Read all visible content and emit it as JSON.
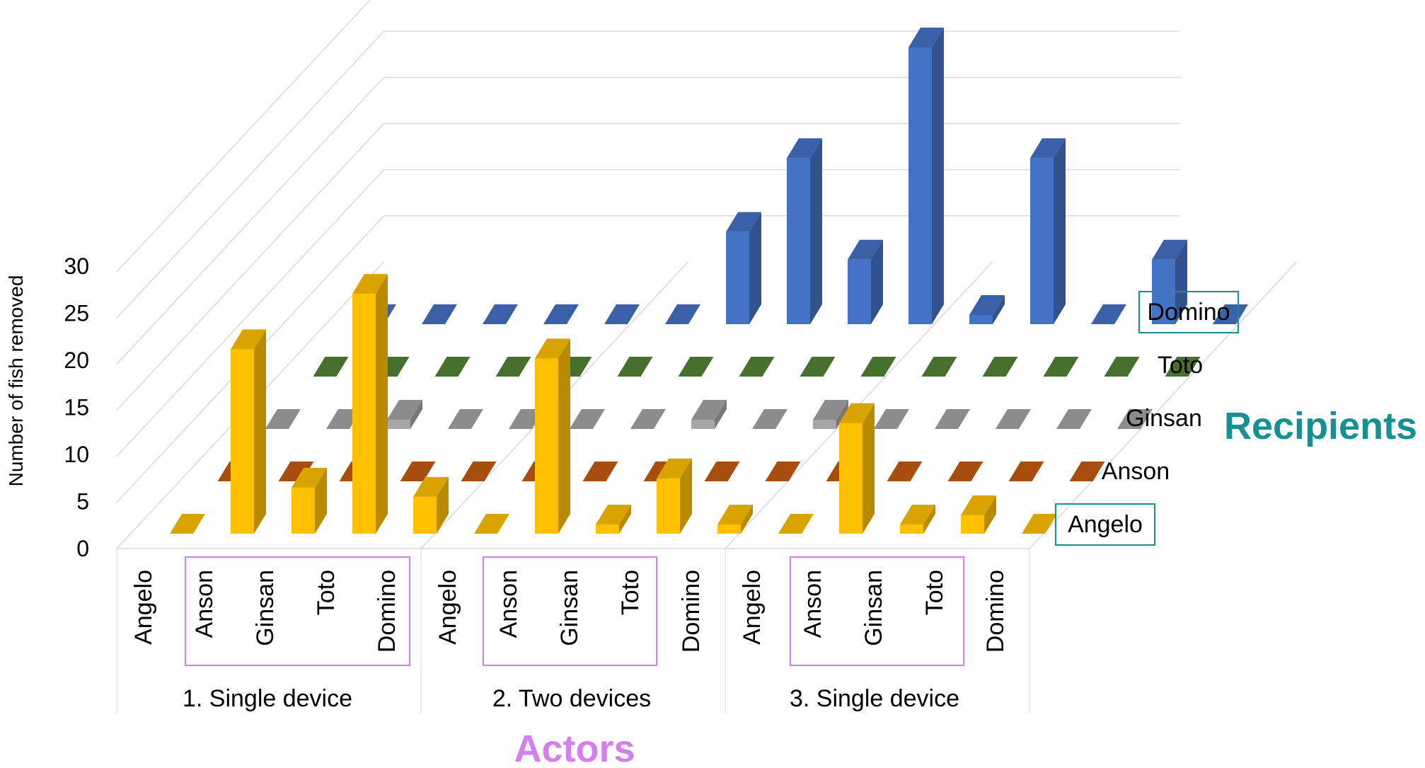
{
  "chart_data": {
    "type": "bar",
    "subtype": "3d-column",
    "ylabel": "Number of fish removed",
    "xlabel": "Actors",
    "zlabel": "Recipients",
    "ylim": [
      0,
      30
    ],
    "y_ticks": [
      0,
      5,
      10,
      15,
      20,
      25,
      30
    ],
    "gridlines": true,
    "groups": [
      {
        "label": "1. Single device",
        "actors": [
          "Angelo",
          "Anson",
          "Ginsan",
          "Toto",
          "Domino"
        ]
      },
      {
        "label": "2. Two devices",
        "actors": [
          "Angelo",
          "Anson",
          "Ginsan",
          "Toto",
          "Domino"
        ]
      },
      {
        "label": "3. Single device",
        "actors": [
          "Angelo",
          "Anson",
          "Ginsan",
          "Toto",
          "Domino"
        ]
      }
    ],
    "highlighted_actors": [
      "Anson",
      "Ginsan",
      "Toto"
    ],
    "highlighted_recipients": [
      "Domino",
      "Angelo"
    ],
    "series": [
      {
        "name": "Angelo",
        "color": "#FFC000",
        "values": [
          0,
          20,
          5,
          26,
          4,
          0,
          19,
          1,
          6,
          1,
          0,
          12,
          1,
          2,
          0
        ]
      },
      {
        "name": "Anson",
        "color": "#C55A11",
        "values": [
          0,
          0,
          0,
          0,
          0,
          0,
          0,
          0,
          0,
          0,
          0,
          0,
          0,
          0,
          0
        ]
      },
      {
        "name": "Ginsan",
        "color": "#A5A5A5",
        "values": [
          0,
          0,
          1,
          0,
          0,
          0,
          0,
          1,
          0,
          1,
          0,
          0,
          0,
          0,
          0
        ]
      },
      {
        "name": "Toto",
        "color": "#548235",
        "values": [
          0,
          0,
          0,
          0,
          0,
          0,
          0,
          0,
          0,
          0,
          0,
          0,
          0,
          0,
          0
        ]
      },
      {
        "name": "Domino",
        "color": "#4472C4",
        "values": [
          0,
          0,
          0,
          0,
          0,
          0,
          10,
          18,
          7,
          30,
          1,
          18,
          0,
          7,
          0
        ]
      }
    ]
  }
}
